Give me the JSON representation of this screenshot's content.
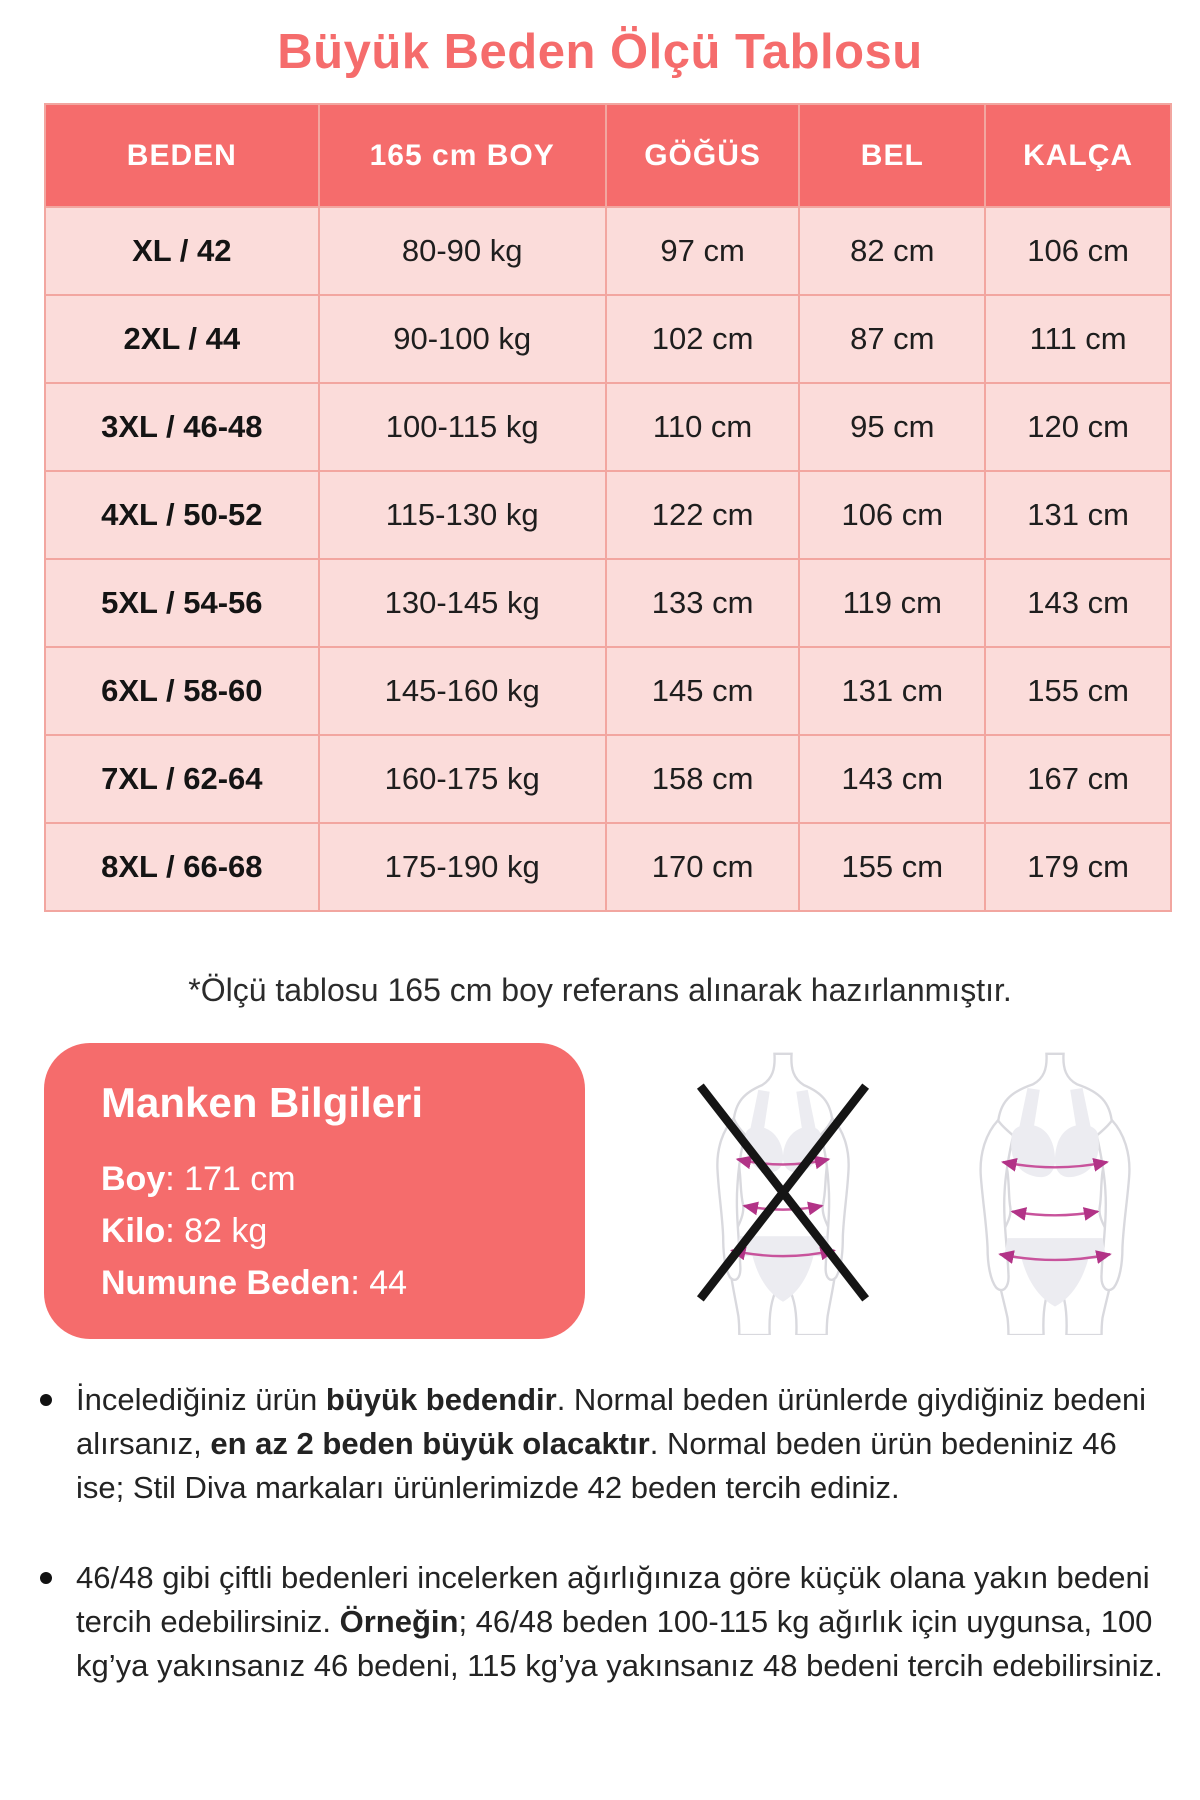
{
  "title": "Büyük Beden Ölçü Tablosu",
  "table": {
    "headers": [
      "BEDEN",
      "165 cm BOY",
      "GÖĞÜS",
      "BEL",
      "KALÇA"
    ],
    "rows": [
      [
        "XL / 42",
        "80-90 kg",
        "97 cm",
        "82 cm",
        "106 cm"
      ],
      [
        "2XL / 44",
        "90-100 kg",
        "102 cm",
        "87 cm",
        "111 cm"
      ],
      [
        "3XL / 46-48",
        "100-115 kg",
        "110 cm",
        "95 cm",
        "120 cm"
      ],
      [
        "4XL / 50-52",
        "115-130 kg",
        "122 cm",
        "106 cm",
        "131 cm"
      ],
      [
        "5XL / 54-56",
        "130-145 kg",
        "133 cm",
        "119 cm",
        "143 cm"
      ],
      [
        "6XL / 58-60",
        "145-160 kg",
        "145 cm",
        "131 cm",
        "155 cm"
      ],
      [
        "7XL / 62-64",
        "160-175 kg",
        "158 cm",
        "143 cm",
        "167 cm"
      ],
      [
        "8XL / 66-68",
        "175-190 kg",
        "170 cm",
        "155 cm",
        "179 cm"
      ]
    ]
  },
  "note": "*Ölçü tablosu 165 cm boy referans alınarak hazırlanmıştır.",
  "model_info": {
    "title": "Manken Bilgileri",
    "lines": [
      [
        {
          "text": "Boy",
          "bold": true
        },
        {
          "text": ": 171 cm"
        }
      ],
      [
        {
          "text": "Kilo",
          "bold": true
        },
        {
          "text": ": 82 kg"
        }
      ],
      [
        {
          "text": "Numune Beden",
          "bold": true
        },
        {
          "text": ": 44"
        }
      ]
    ]
  },
  "bullets": [
    [
      {
        "text": "İncelediğiniz ürün "
      },
      {
        "text": "büyük bedendir",
        "bold": true
      },
      {
        "text": ". Normal beden ürünlerde giydiğiniz bedeni alırsanız, "
      },
      {
        "text": "en az 2 beden büyük olacaktır",
        "bold": true
      },
      {
        "text": ". Normal beden ürün bedeniniz 46 ise; Stil Diva markaları ürünlerimizde 42 beden tercih ediniz."
      }
    ],
    [
      {
        "text": "46/48 gibi çiftli bedenleri incelerken ağırlığınıza göre küçük olana yakın bedeni tercih edebilirsiniz. "
      },
      {
        "text": "Örneğin",
        "bold": true
      },
      {
        "text": "; 46/48 beden 100-115 kg ağırlık için uygunsa, 100 kg’ya yakınsanız 46 bedeni, 115 kg’ya yakınsanız 48 bedeni tercih edebilirsiniz."
      }
    ]
  ],
  "icons": {
    "incorrect_figure": "crossed-out-slim-body-measurement-figure",
    "correct_figure": "plus-size-body-measurement-figure",
    "bullet_marker": "black-dot"
  },
  "colors": {
    "coral": "#F56C6C",
    "row-pink": "#FBDCDA",
    "border-pink": "#F2A6A0",
    "text-dark": "#1E1E1E",
    "figure-outline": "#D9D9DE",
    "figure-fill": "#ECECF1",
    "measure-pink": "#C8539C",
    "measure-dark": "#B23387",
    "cross-black": "#151515"
  }
}
